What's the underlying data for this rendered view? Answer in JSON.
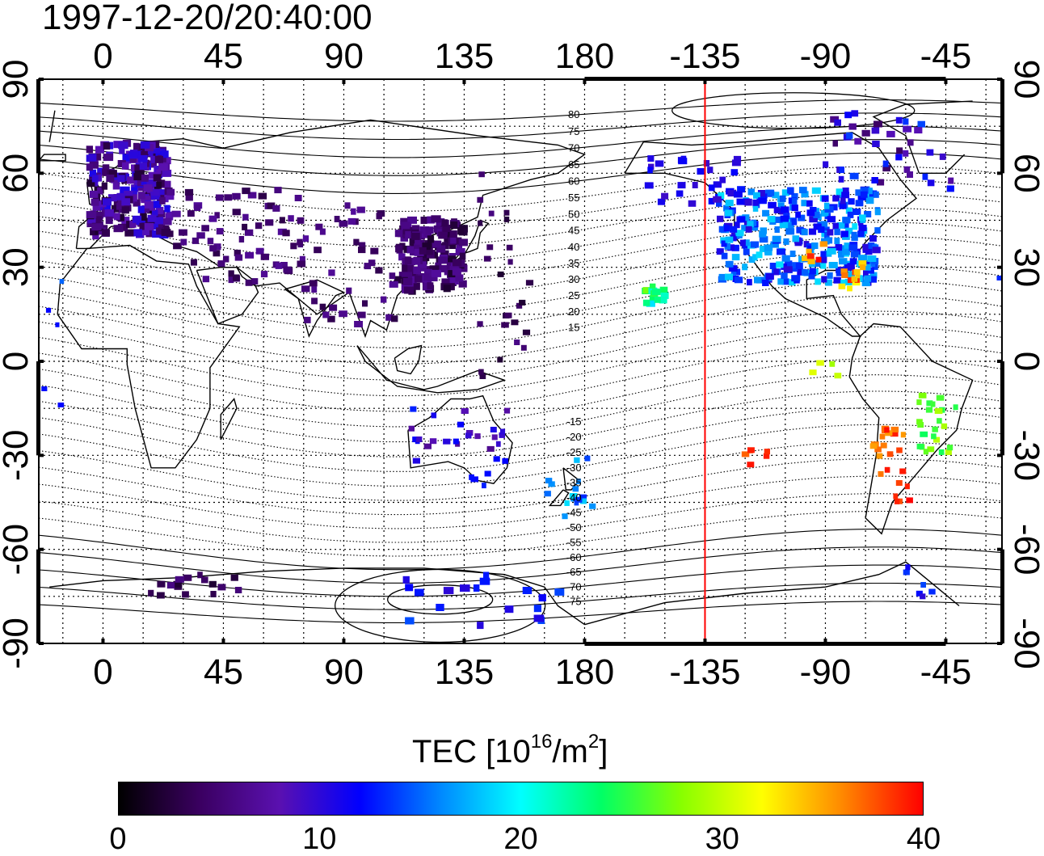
{
  "title": "1997-12-20/20:40:00",
  "map": {
    "lon_ticks": [
      "0",
      "45",
      "90",
      "135",
      "180",
      "-135",
      "-90",
      "-45"
    ],
    "lat_ticks": [
      "90",
      "60",
      "30",
      "0",
      "-30",
      "-60",
      "-90"
    ],
    "contour_labels": [
      "80",
      "75",
      "70",
      "65",
      "60",
      "55",
      "50",
      "45",
      "40",
      "35",
      "30",
      "25",
      "20",
      "15",
      "-15",
      "-20",
      "-25",
      "-30",
      "-35",
      "-40",
      "-45",
      "-50",
      "-55",
      "-60",
      "-65",
      "-70",
      "-75"
    ],
    "marker_line_lon": -135,
    "marker_line_color": "#ff0000"
  },
  "colorbar": {
    "title": "TEC  [10",
    "title_exp": "16",
    "title_unit": "/m",
    "title_unit_exp": "2",
    "title_close": "]",
    "ticks": [
      "0",
      "10",
      "20",
      "30",
      "40"
    ],
    "colors": [
      "#000000",
      "#3a0060",
      "#5a10b0",
      "#0000ff",
      "#0088ff",
      "#00ffff",
      "#00ff66",
      "#88ff00",
      "#ffff00",
      "#ff8800",
      "#ff0000"
    ]
  }
}
